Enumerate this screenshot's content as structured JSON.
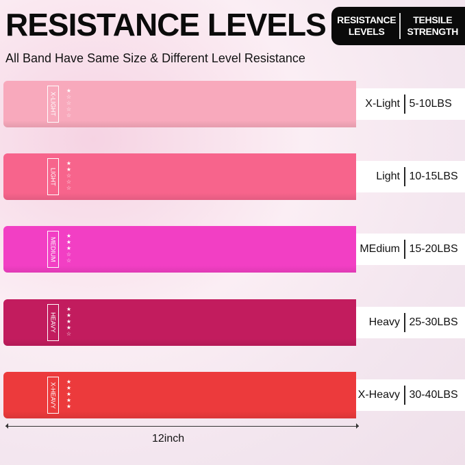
{
  "title": "RESISTANCE LEVELS",
  "subtitle": "All Band Have Same Size & Different Level Resistance",
  "header": {
    "col1": "RESISTANCE LEVELS",
    "col2": "TEHSILE STRENGTH"
  },
  "bands": [
    {
      "tag": "X-LIGHT",
      "level": "X-Light",
      "strength": "5-10LBS",
      "stars_filled": 1,
      "stars_total": 5,
      "color": "#f8a9bc"
    },
    {
      "tag": "LIGHT",
      "level": "Light",
      "strength": "10-15LBS",
      "stars_filled": 2,
      "stars_total": 5,
      "color": "#f7648c"
    },
    {
      "tag": "MEDIUM",
      "level": "MEdium",
      "strength": "15-20LBS",
      "stars_filled": 3,
      "stars_total": 5,
      "color": "#f23fc4"
    },
    {
      "tag": "HEAVY",
      "level": "Heavy",
      "strength": "25-30LBS",
      "stars_filled": 4,
      "stars_total": 5,
      "color": "#c21c5e"
    },
    {
      "tag": "X-HEAVY",
      "level": "X-Heavy",
      "strength": "30-40LBS",
      "stars_filled": 5,
      "stars_total": 5,
      "color": "#ec3a3c"
    }
  ],
  "measure": "12inch"
}
